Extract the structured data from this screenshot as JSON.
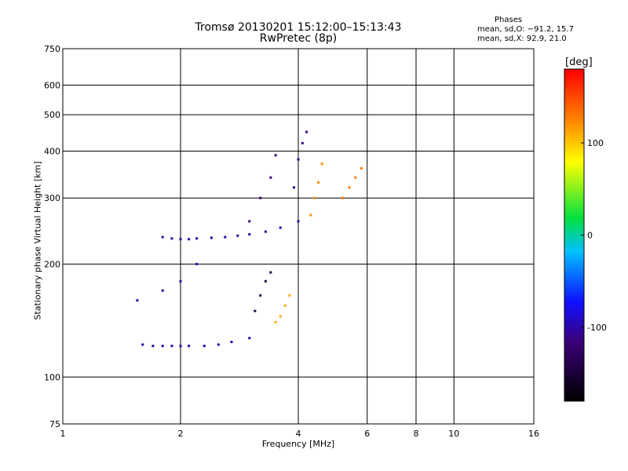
{
  "chart_data": {
    "type": "scatter",
    "title": "Tromsø 20130201 15:12:00–15:13:43",
    "subtitle": "RwPretec (8p)",
    "xlabel": "Frequency [MHz]",
    "ylabel": "Stationary phase Virtual Height [km]",
    "x_scale": "log",
    "y_scale": "log",
    "xlim": [
      1,
      16
    ],
    "ylim": [
      75,
      750
    ],
    "x_ticks": [
      1,
      2,
      4,
      6,
      8,
      10,
      16
    ],
    "y_ticks": [
      75,
      100,
      200,
      300,
      400,
      500,
      600,
      750
    ],
    "grid": true,
    "stats": {
      "heading": "Phases",
      "o_line": "mean, sd,O: −91.2, 15.7",
      "x_line": "mean, sd,X:  92.9, 21.0"
    },
    "colorbar": {
      "label": "[deg]",
      "ticks": [
        100,
        0,
        -100
      ],
      "range": [
        -180,
        180
      ]
    },
    "traces": [
      {
        "x": [
          1.6,
          1.7,
          1.8,
          1.9,
          2.0,
          2.1,
          2.3,
          2.5,
          2.7,
          3.0
        ],
        "y": [
          122,
          121,
          121,
          121,
          121,
          121,
          121,
          122,
          124,
          127
        ],
        "phase": -100
      },
      {
        "x": [
          1.55,
          1.8,
          2.0,
          2.2
        ],
        "y": [
          160,
          170,
          180,
          200
        ],
        "phase": -100
      },
      {
        "x": [
          3.1,
          3.2,
          3.3,
          3.4
        ],
        "y": [
          150,
          165,
          180,
          190
        ],
        "phase": -140
      },
      {
        "x": [
          3.5,
          3.6,
          3.7,
          3.8
        ],
        "y": [
          140,
          145,
          155,
          165
        ],
        "phase": 110
      },
      {
        "x": [
          1.8,
          1.9,
          2.0,
          2.1,
          2.2,
          2.4,
          2.6,
          2.8,
          3.0,
          3.3,
          3.6,
          4.0
        ],
        "y": [
          236,
          234,
          233,
          233,
          234,
          235,
          236,
          238,
          240,
          244,
          250,
          260
        ],
        "phase": -100
      },
      {
        "x": [
          3.0,
          3.2,
          3.4,
          3.5
        ],
        "y": [
          260,
          300,
          340,
          390
        ],
        "phase": -120
      },
      {
        "x": [
          3.9,
          4.0,
          4.1,
          4.2
        ],
        "y": [
          320,
          380,
          420,
          450
        ],
        "phase": -110
      },
      {
        "x": [
          4.3,
          4.4,
          4.5,
          4.6
        ],
        "y": [
          270,
          300,
          330,
          370
        ],
        "phase": 120
      },
      {
        "x": [
          5.2,
          5.4,
          5.6,
          5.8
        ],
        "y": [
          300,
          320,
          340,
          360
        ],
        "phase": 130
      }
    ]
  }
}
